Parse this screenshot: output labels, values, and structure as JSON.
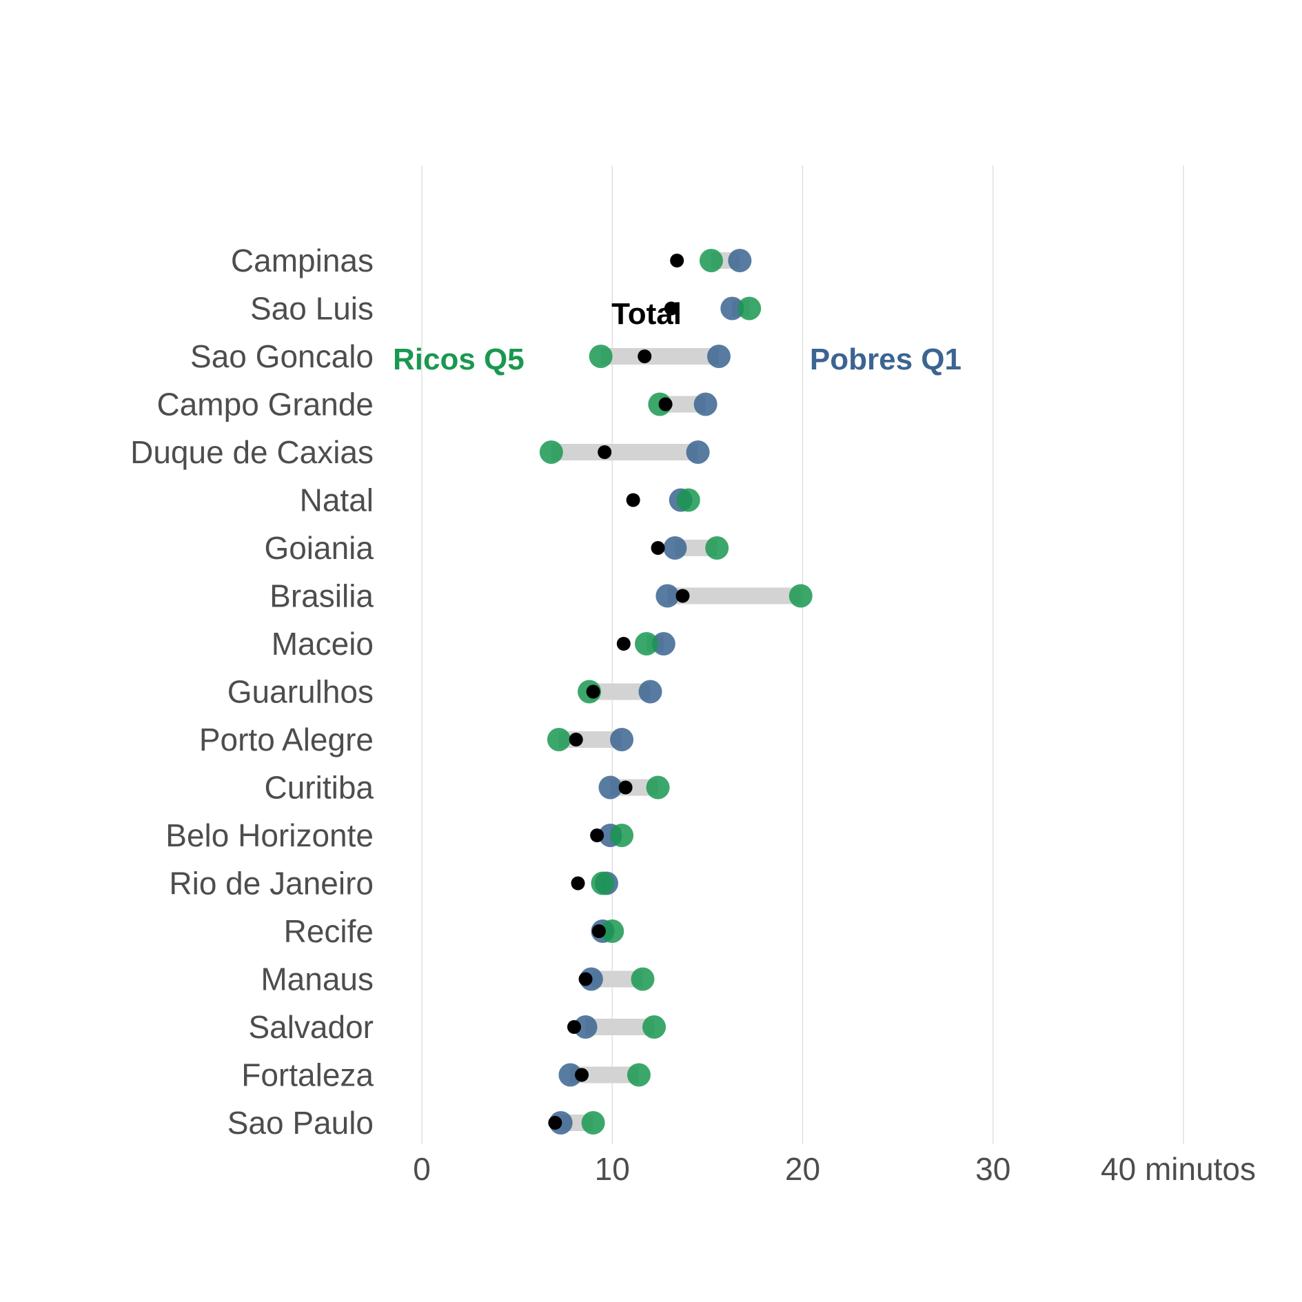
{
  "chart_data": {
    "type": "dumbbell",
    "x_tick_labels": [
      "0",
      "10",
      "20",
      "30",
      "40 minutos"
    ],
    "x_ticks": [
      0,
      10,
      20,
      30,
      40
    ],
    "xlim": [
      0,
      40
    ],
    "grid": "vertical-major",
    "colors": {
      "ricos": "#1a9850",
      "pobres": "#3b6491",
      "total": "#000000",
      "segment": "#d3d3d3",
      "grid": "#e0e0e0"
    },
    "annotations": {
      "total": "Total",
      "ricos": "Ricos Q5",
      "pobres": "Pobres Q1"
    },
    "categories": [
      "Campinas",
      "Sao Luis",
      "Sao Goncalo",
      "Campo Grande",
      "Duque de Caxias",
      "Natal",
      "Goiania",
      "Brasilia",
      "Maceio",
      "Guarulhos",
      "Porto Alegre",
      "Curitiba",
      "Belo Horizonte",
      "Rio de Janeiro",
      "Recife",
      "Manaus",
      "Salvador",
      "Fortaleza",
      "Sao Paulo"
    ],
    "series": [
      {
        "name": "Ricos Q5",
        "key": "ricos",
        "values": [
          15.2,
          17.2,
          9.4,
          12.5,
          6.8,
          14.0,
          15.5,
          19.9,
          11.8,
          8.8,
          7.2,
          12.4,
          10.5,
          9.5,
          10.0,
          11.6,
          12.2,
          11.4,
          9.0
        ]
      },
      {
        "name": "Pobres Q1",
        "key": "pobres",
        "values": [
          16.7,
          16.3,
          15.6,
          14.9,
          14.5,
          13.6,
          13.3,
          12.9,
          12.7,
          12.0,
          10.5,
          9.9,
          9.9,
          9.7,
          9.5,
          8.9,
          8.6,
          7.8,
          7.3
        ]
      },
      {
        "name": "Total",
        "key": "total",
        "values": [
          13.4,
          13.1,
          11.7,
          12.8,
          9.6,
          11.1,
          12.4,
          13.7,
          10.6,
          9.0,
          8.1,
          10.7,
          9.2,
          8.2,
          9.3,
          8.6,
          8.0,
          8.4,
          7.0
        ]
      }
    ]
  }
}
